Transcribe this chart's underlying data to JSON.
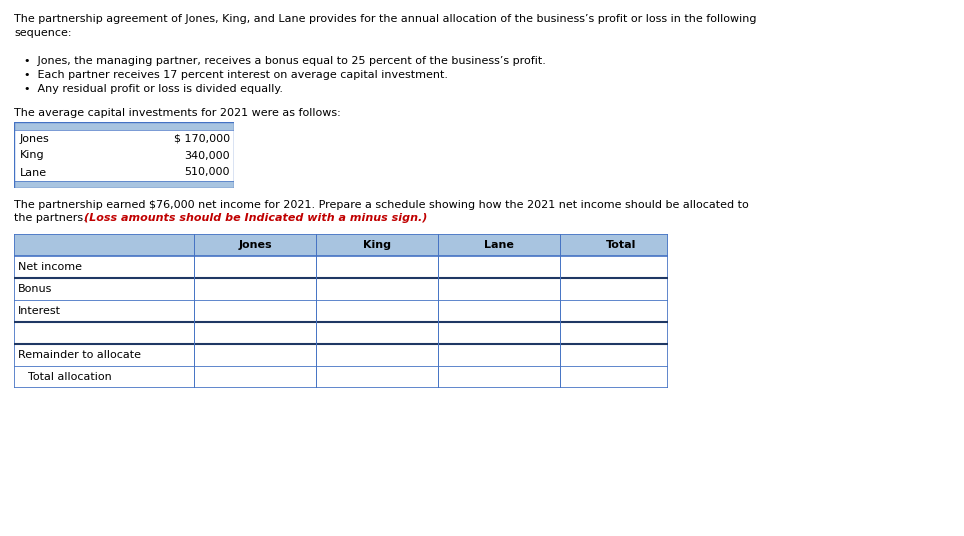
{
  "background_color": "#ffffff",
  "text_color": "#000000",
  "bold_color": "#c00000",
  "header_color": "#a8c4e0",
  "border_color": "#4472c4",
  "dark_border_color": "#1f3864",
  "paragraph1_line1": "The partnership agreement of Jones, King, and Lane provides for the annual allocation of the business’s profit or loss in the following",
  "paragraph1_line2": "sequence:",
  "bullets": [
    "Jones, the managing partner, receives a bonus equal to 25 percent of the business’s profit.",
    "Each partner receives 17 percent interest on average capital investment.",
    "Any residual profit or loss is divided equally."
  ],
  "investments_intro": "The average capital investments for 2021 were as follows:",
  "investment_rows": [
    [
      "Jones",
      "$ 170,000"
    ],
    [
      "King",
      "340,000"
    ],
    [
      "Lane",
      "510,000"
    ]
  ],
  "paragraph2_line1": "The partnership earned $76,000 net income for 2021. Prepare a schedule showing how the 2021 net income should be allocated to",
  "paragraph2_line2_normal": "the partners. ",
  "paragraph2_line2_bold": "(Loss amounts should be Indicated with a minus sign.)",
  "table_headers": [
    "",
    "Jones",
    "King",
    "Lane",
    "Total"
  ],
  "table_rows": [
    "Net income",
    "Bonus",
    "Interest",
    "",
    "Remainder to allocate",
    "Total allocation"
  ],
  "indent_row": "Total allocation",
  "thick_borders_after": [
    0,
    2,
    3
  ],
  "base_font_size": 8.0,
  "fig_width": 9.64,
  "fig_height": 5.36
}
